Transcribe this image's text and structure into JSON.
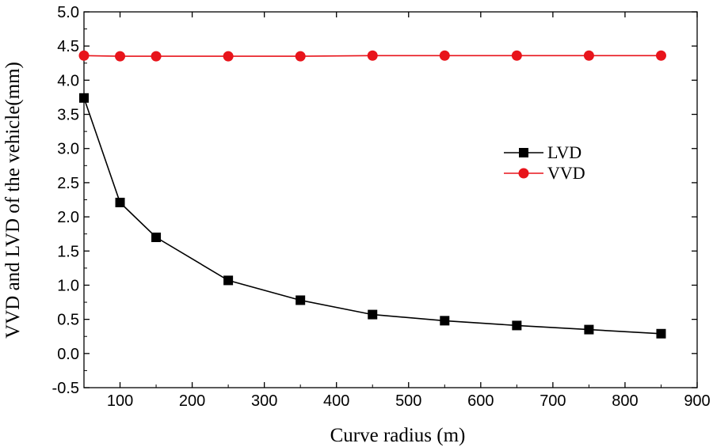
{
  "chart_data": {
    "type": "line",
    "title": "",
    "xlabel": "Curve radius (m)",
    "ylabel": "VVD and LVD of the vehicle(mm)",
    "xlim": [
      50,
      900
    ],
    "ylim": [
      -0.5,
      5.0
    ],
    "xticks": [
      100,
      200,
      300,
      400,
      500,
      600,
      700,
      800,
      900
    ],
    "yticks": [
      -0.5,
      0.0,
      0.5,
      1.0,
      1.5,
      2.0,
      2.5,
      3.0,
      3.5,
      4.0,
      4.5,
      5.0
    ],
    "ytick_labels": [
      "-0.5",
      "0.0",
      "0.5",
      "1.0",
      "1.5",
      "2.0",
      "2.5",
      "3.0",
      "3.5",
      "4.0",
      "4.5",
      "5.0"
    ],
    "x": [
      50,
      100,
      150,
      250,
      350,
      450,
      550,
      650,
      750,
      850
    ],
    "legend_position": "center-right",
    "series": [
      {
        "name": "LVD",
        "marker": "square",
        "color": "#000000",
        "values": [
          3.74,
          2.21,
          1.7,
          1.07,
          0.78,
          0.57,
          0.48,
          0.41,
          0.35,
          0.29
        ]
      },
      {
        "name": "VVD",
        "marker": "circle",
        "color": "#e8141b",
        "values": [
          4.36,
          4.35,
          4.35,
          4.35,
          4.35,
          4.36,
          4.36,
          4.36,
          4.36,
          4.36
        ]
      }
    ]
  }
}
